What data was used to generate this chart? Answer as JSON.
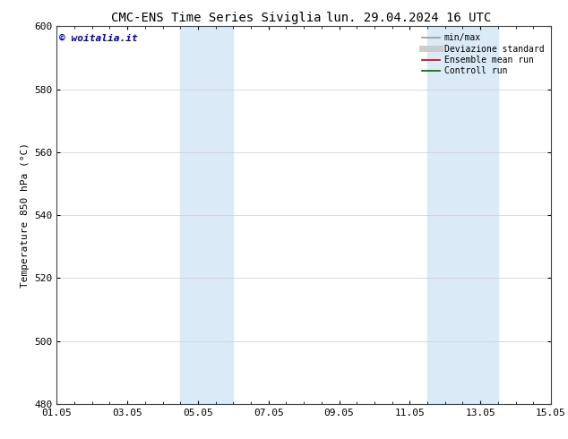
{
  "title_left": "CMC-ENS Time Series Siviglia",
  "title_right": "lun. 29.04.2024 16 UTC",
  "ylabel": "Temperature 850 hPa (°C)",
  "ylim": [
    480,
    600
  ],
  "yticks": [
    480,
    500,
    520,
    540,
    560,
    580,
    600
  ],
  "xtick_labels": [
    "01.05",
    "03.05",
    "05.05",
    "07.05",
    "09.05",
    "11.05",
    "13.05",
    "15.05"
  ],
  "xtick_positions": [
    0,
    2,
    4,
    6,
    8,
    10,
    12,
    14
  ],
  "xlim": [
    0,
    14
  ],
  "shaded_bands": [
    {
      "x_start": 3.5,
      "x_end": 5.0
    },
    {
      "x_start": 10.5,
      "x_end": 12.5
    }
  ],
  "shaded_color": "#daeaf7",
  "watermark_text": "© woitalia.it",
  "watermark_color": "#0000cc",
  "legend_entries": [
    {
      "label": "min/max",
      "color": "#999999",
      "lw": 1.2,
      "ls": "-"
    },
    {
      "label": "Deviazione standard",
      "color": "#cccccc",
      "lw": 5,
      "ls": "-"
    },
    {
      "label": "Ensemble mean run",
      "color": "#cc0000",
      "lw": 1.2,
      "ls": "-"
    },
    {
      "label": "Controll run",
      "color": "#006600",
      "lw": 1.2,
      "ls": "-"
    }
  ],
  "bg_color": "#ffffff",
  "grid_color": "#cccccc",
  "title_fontsize": 10,
  "axis_fontsize": 8,
  "tick_fontsize": 8,
  "legend_fontsize": 7
}
